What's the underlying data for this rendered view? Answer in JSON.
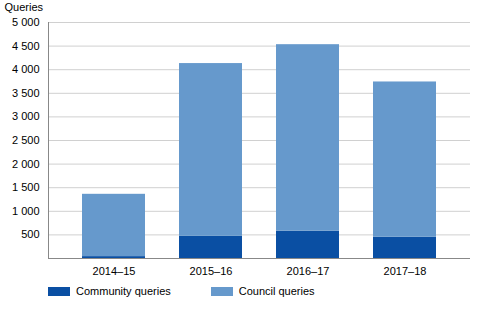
{
  "chart_data": {
    "type": "bar",
    "stacked": true,
    "y_label": "Queries",
    "categories": [
      "2014–15",
      "2015–16",
      "2016–17",
      "2017–18"
    ],
    "series": [
      {
        "name": "Community queries",
        "color": "#0a4fa3",
        "values": [
          40,
          470,
          580,
          450
        ]
      },
      {
        "name": "Council queries",
        "color": "#6699cc",
        "values": [
          1320,
          3660,
          3950,
          3290
        ]
      }
    ],
    "ylim": [
      0,
      5000
    ],
    "yticks": [
      500,
      {
        "value": 1000,
        "label": "1 000"
      },
      {
        "value": 1500,
        "label": "1 500"
      },
      {
        "value": 2000,
        "label": "2 000"
      },
      {
        "value": 2500,
        "label": "2 500"
      },
      {
        "value": 3000,
        "label": "3 000"
      },
      {
        "value": 3500,
        "label": "3 500"
      },
      {
        "value": 4000,
        "label": "4 000"
      },
      {
        "value": 4500,
        "label": "4 500"
      },
      {
        "value": 5000,
        "label": "5 000"
      }
    ],
    "grid": true,
    "legend": "bottom"
  }
}
